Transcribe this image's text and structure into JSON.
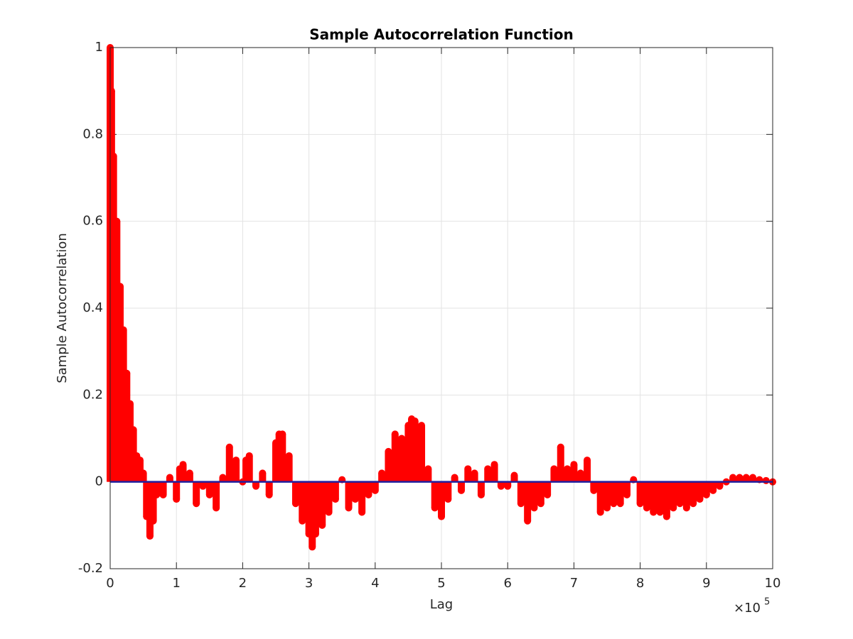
{
  "chart_data": {
    "type": "stem",
    "title": "Sample Autocorrelation Function",
    "xlabel": "Lag",
    "ylabel": "Sample Autocorrelation",
    "x_exponent_base": "×10",
    "x_exponent_power": "5",
    "x": [
      0,
      0.02,
      0.05,
      0.1,
      0.15,
      0.2,
      0.25,
      0.3,
      0.35,
      0.4,
      0.45,
      0.5,
      0.55,
      0.6,
      0.65,
      0.7,
      0.8,
      0.9,
      1.0,
      1.05,
      1.1,
      1.2,
      1.3,
      1.4,
      1.5,
      1.6,
      1.7,
      1.8,
      1.85,
      1.9,
      2.0,
      2.05,
      2.1,
      2.2,
      2.3,
      2.4,
      2.5,
      2.55,
      2.6,
      2.7,
      2.8,
      2.9,
      3.0,
      3.05,
      3.1,
      3.2,
      3.3,
      3.4,
      3.5,
      3.6,
      3.7,
      3.8,
      3.9,
      4.0,
      4.1,
      4.2,
      4.3,
      4.4,
      4.5,
      4.55,
      4.6,
      4.7,
      4.8,
      4.9,
      5.0,
      5.1,
      5.2,
      5.3,
      5.4,
      5.5,
      5.6,
      5.7,
      5.8,
      5.9,
      6.0,
      6.1,
      6.2,
      6.3,
      6.4,
      6.5,
      6.6,
      6.7,
      6.8,
      6.9,
      7.0,
      7.1,
      7.2,
      7.3,
      7.4,
      7.5,
      7.6,
      7.7,
      7.8,
      7.9,
      8.0,
      8.1,
      8.2,
      8.3,
      8.4,
      8.5,
      8.6,
      8.7,
      8.8,
      8.9,
      9.0,
      9.1,
      9.2,
      9.3,
      9.4,
      9.5,
      9.6,
      9.7,
      9.8,
      9.9,
      10.0
    ],
    "values": [
      1.0,
      0.9,
      0.75,
      0.6,
      0.45,
      0.35,
      0.25,
      0.18,
      0.12,
      0.06,
      0.05,
      0.02,
      -0.08,
      -0.125,
      -0.09,
      -0.03,
      -0.03,
      0.01,
      -0.04,
      0.03,
      0.04,
      0.02,
      -0.05,
      -0.01,
      -0.03,
      -0.06,
      0.01,
      0.08,
      0.04,
      0.05,
      0.0,
      0.05,
      0.06,
      -0.01,
      0.02,
      -0.03,
      0.09,
      0.11,
      0.11,
      0.06,
      -0.05,
      -0.09,
      -0.12,
      -0.15,
      -0.12,
      -0.1,
      -0.07,
      -0.04,
      0.005,
      -0.06,
      -0.04,
      -0.07,
      -0.03,
      -0.02,
      0.02,
      0.07,
      0.11,
      0.1,
      0.13,
      0.145,
      0.14,
      0.13,
      0.03,
      -0.06,
      -0.08,
      -0.04,
      0.01,
      -0.02,
      0.03,
      0.02,
      -0.03,
      0.03,
      0.04,
      -0.01,
      -0.01,
      0.015,
      -0.05,
      -0.09,
      -0.06,
      -0.05,
      -0.03,
      0.03,
      0.08,
      0.03,
      0.04,
      0.02,
      0.05,
      -0.02,
      -0.07,
      -0.06,
      -0.05,
      -0.05,
      -0.03,
      0.005,
      -0.05,
      -0.06,
      -0.07,
      -0.07,
      -0.08,
      -0.06,
      -0.05,
      -0.06,
      -0.05,
      -0.04,
      -0.03,
      -0.02,
      -0.01,
      0.0,
      0.01,
      0.01,
      0.01,
      0.01,
      0.005,
      0.003,
      0.0
    ],
    "color": "#ff0000",
    "baseline_color": "#1f1f9f",
    "xlim": [
      0,
      10
    ],
    "xticks": [
      0,
      1,
      2,
      3,
      4,
      5,
      6,
      7,
      8,
      9,
      10
    ],
    "ylim": [
      -0.2,
      1
    ],
    "yticks": [
      -0.2,
      0,
      0.2,
      0.4,
      0.6,
      0.8,
      1
    ],
    "grid": true
  }
}
